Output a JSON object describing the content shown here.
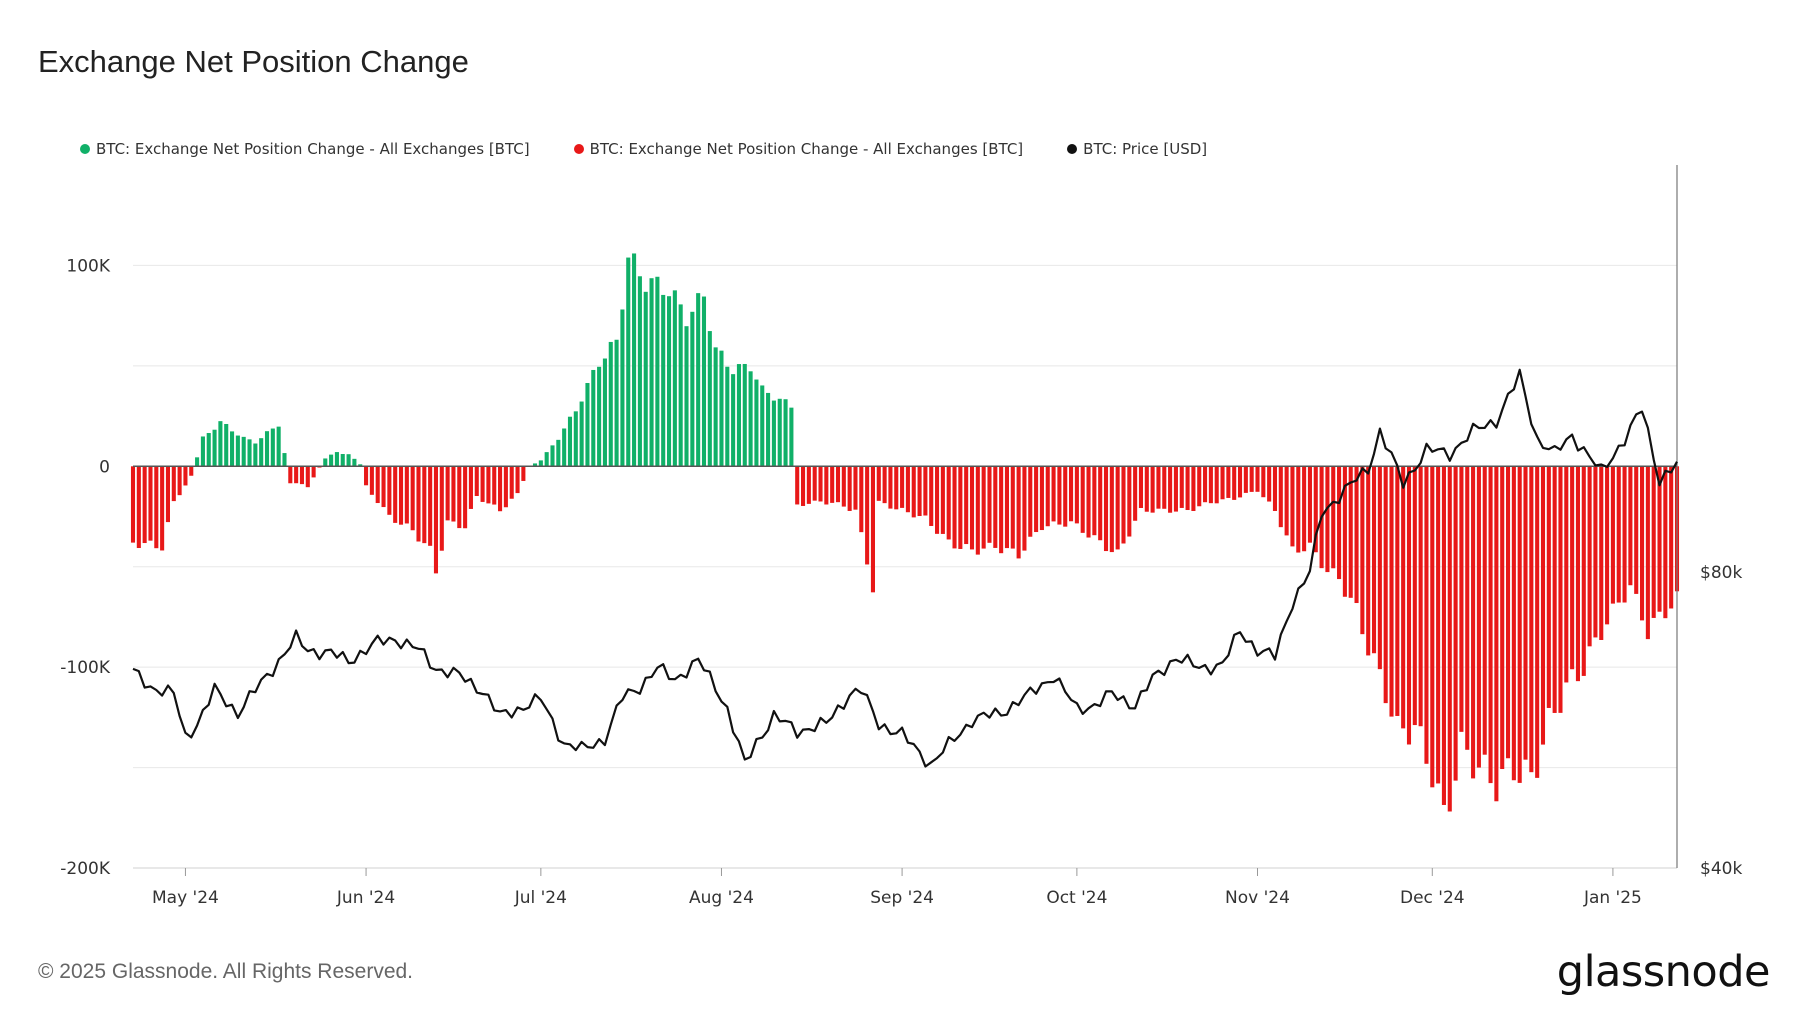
{
  "title": "Exchange Net Position Change",
  "footer": "© 2025 Glassnode. All Rights Reserved.",
  "brand": "glassnode",
  "colors": {
    "positive": "#10b068",
    "negative": "#e81818",
    "price": "#111111",
    "grid": "#e8e8e8",
    "zero": "#555555"
  },
  "chart_data": {
    "type": "bar",
    "title": "Exchange Net Position Change",
    "legend_placement": "top-left",
    "legend": [
      {
        "label": "BTC: Exchange Net Position Change - All Exchanges [BTC]",
        "color": "#10b068"
      },
      {
        "label": "BTC: Exchange Net Position Change - All Exchanges [BTC]",
        "color": "#e81818"
      },
      {
        "label": "BTC: Price [USD]",
        "color": "#111111"
      }
    ],
    "x_range": [
      "2024-04-22",
      "2025-01-12"
    ],
    "x_ticks": [
      {
        "date": "2024-05-01",
        "label": "May '24"
      },
      {
        "date": "2024-06-01",
        "label": "Jun '24"
      },
      {
        "date": "2024-07-01",
        "label": "Jul '24"
      },
      {
        "date": "2024-08-01",
        "label": "Aug '24"
      },
      {
        "date": "2024-09-01",
        "label": "Sep '24"
      },
      {
        "date": "2024-10-01",
        "label": "Oct '24"
      },
      {
        "date": "2024-11-01",
        "label": "Nov '24"
      },
      {
        "date": "2024-12-01",
        "label": "Dec '24"
      },
      {
        "date": "2025-01-01",
        "label": "Jan '25"
      }
    ],
    "y_left": {
      "range": [
        -200000,
        150000
      ],
      "ticks": [
        100000,
        0,
        -100000,
        -200000
      ],
      "tick_labels": [
        "100K",
        "0",
        "-100K",
        "-200K"
      ]
    },
    "y_right": {
      "range": [
        40000,
        135000
      ],
      "ticks": [
        80000,
        40000
      ],
      "tick_labels": [
        "$80k",
        "$40k"
      ]
    },
    "grid": true,
    "series": [
      {
        "name": "BTC: Exchange Net Position Change - All Exchanges [BTC]",
        "type": "bar",
        "anchors": [
          [
            "2024-04-22",
            -38000
          ],
          [
            "2024-04-27",
            -40000
          ],
          [
            "2024-04-29",
            -18000
          ],
          [
            "2024-05-02",
            -5000
          ],
          [
            "2024-05-04",
            14000
          ],
          [
            "2024-05-07",
            22000
          ],
          [
            "2024-05-11",
            14000
          ],
          [
            "2024-05-13",
            12000
          ],
          [
            "2024-05-17",
            21000
          ],
          [
            "2024-05-19",
            -8000
          ],
          [
            "2024-05-22",
            -10000
          ],
          [
            "2024-05-25",
            4000
          ],
          [
            "2024-05-27",
            7000
          ],
          [
            "2024-05-29",
            6000
          ],
          [
            "2024-05-31",
            1000
          ],
          [
            "2024-06-01",
            -10000
          ],
          [
            "2024-06-05",
            -25000
          ],
          [
            "2024-06-09",
            -32000
          ],
          [
            "2024-06-12",
            -42000
          ],
          [
            "2024-06-13",
            -52000
          ],
          [
            "2024-06-15",
            -28000
          ],
          [
            "2024-06-18",
            -30000
          ],
          [
            "2024-06-20",
            -15000
          ],
          [
            "2024-06-24",
            -22000
          ],
          [
            "2024-06-27",
            -14000
          ],
          [
            "2024-06-29",
            0
          ],
          [
            "2024-07-01",
            3000
          ],
          [
            "2024-07-04",
            14000
          ],
          [
            "2024-07-07",
            28000
          ],
          [
            "2024-07-11",
            52000
          ],
          [
            "2024-07-14",
            62000
          ],
          [
            "2024-07-16",
            104000
          ],
          [
            "2024-07-19",
            92000
          ],
          [
            "2024-07-23",
            88000
          ],
          [
            "2024-07-26",
            74000
          ],
          [
            "2024-07-29",
            85000
          ],
          [
            "2024-07-31",
            58000
          ],
          [
            "2024-08-03",
            48000
          ],
          [
            "2024-08-06",
            50000
          ],
          [
            "2024-08-08",
            38000
          ],
          [
            "2024-08-13",
            30000
          ],
          [
            "2024-08-14",
            -20000
          ],
          [
            "2024-08-16",
            -18000
          ],
          [
            "2024-08-20",
            -18000
          ],
          [
            "2024-08-24",
            -22000
          ],
          [
            "2024-08-27",
            -60000
          ],
          [
            "2024-08-28",
            -18000
          ],
          [
            "2024-09-01",
            -22000
          ],
          [
            "2024-09-05",
            -26000
          ],
          [
            "2024-09-09",
            -38000
          ],
          [
            "2024-09-13",
            -42000
          ],
          [
            "2024-09-17",
            -40000
          ],
          [
            "2024-09-21",
            -44000
          ],
          [
            "2024-09-25",
            -30000
          ],
          [
            "2024-09-30",
            -28000
          ],
          [
            "2024-10-05",
            -38000
          ],
          [
            "2024-10-08",
            -44000
          ],
          [
            "2024-10-12",
            -22000
          ],
          [
            "2024-10-16",
            -22000
          ],
          [
            "2024-10-20",
            -22000
          ],
          [
            "2024-10-24",
            -18000
          ],
          [
            "2024-10-28",
            -16000
          ],
          [
            "2024-11-01",
            -12000
          ],
          [
            "2024-11-04",
            -22000
          ],
          [
            "2024-11-07",
            -42000
          ],
          [
            "2024-11-10",
            -40000
          ],
          [
            "2024-11-13",
            -52000
          ],
          [
            "2024-11-15",
            -56000
          ],
          [
            "2024-11-18",
            -72000
          ],
          [
            "2024-11-20",
            -90000
          ],
          [
            "2024-11-23",
            -112000
          ],
          [
            "2024-11-25",
            -132000
          ],
          [
            "2024-11-28",
            -130000
          ],
          [
            "2024-12-01",
            -152000
          ],
          [
            "2024-12-03",
            -176000
          ],
          [
            "2024-12-06",
            -140000
          ],
          [
            "2024-12-09",
            -150000
          ],
          [
            "2024-12-12",
            -158000
          ],
          [
            "2024-12-15",
            -150000
          ],
          [
            "2024-12-18",
            -156000
          ],
          [
            "2024-12-21",
            -128000
          ],
          [
            "2024-12-24",
            -110000
          ],
          [
            "2024-12-27",
            -100000
          ],
          [
            "2024-12-30",
            -82000
          ],
          [
            "2025-01-02",
            -68000
          ],
          [
            "2025-01-04",
            -60000
          ],
          [
            "2025-01-07",
            -82000
          ],
          [
            "2025-01-10",
            -72000
          ],
          [
            "2025-01-12",
            -66000
          ]
        ]
      },
      {
        "name": "BTC: Price [USD]",
        "type": "line",
        "anchors": [
          [
            "2024-04-22",
            66500
          ],
          [
            "2024-04-25",
            64500
          ],
          [
            "2024-04-29",
            63500
          ],
          [
            "2024-05-01",
            57700
          ],
          [
            "2024-05-03",
            59500
          ],
          [
            "2024-05-06",
            64000
          ],
          [
            "2024-05-10",
            61000
          ],
          [
            "2024-05-15",
            66000
          ],
          [
            "2024-05-20",
            71000
          ],
          [
            "2024-05-22",
            69500
          ],
          [
            "2024-05-26",
            69000
          ],
          [
            "2024-05-29",
            68000
          ],
          [
            "2024-06-03",
            70500
          ],
          [
            "2024-06-06",
            71000
          ],
          [
            "2024-06-10",
            69500
          ],
          [
            "2024-06-13",
            67000
          ],
          [
            "2024-06-17",
            66000
          ],
          [
            "2024-06-21",
            64000
          ],
          [
            "2024-06-24",
            60500
          ],
          [
            "2024-06-27",
            61500
          ],
          [
            "2024-07-01",
            62800
          ],
          [
            "2024-07-05",
            56800
          ],
          [
            "2024-07-08",
            56000
          ],
          [
            "2024-07-12",
            57500
          ],
          [
            "2024-07-15",
            63000
          ],
          [
            "2024-07-18",
            64500
          ],
          [
            "2024-07-21",
            67000
          ],
          [
            "2024-07-24",
            65500
          ],
          [
            "2024-07-28",
            68000
          ],
          [
            "2024-07-31",
            64500
          ],
          [
            "2024-08-02",
            61500
          ],
          [
            "2024-08-05",
            54000
          ],
          [
            "2024-08-07",
            57000
          ],
          [
            "2024-08-10",
            60500
          ],
          [
            "2024-08-14",
            58500
          ],
          [
            "2024-08-19",
            59500
          ],
          [
            "2024-08-23",
            63500
          ],
          [
            "2024-08-25",
            64000
          ],
          [
            "2024-08-28",
            59500
          ],
          [
            "2024-09-01",
            58000
          ],
          [
            "2024-09-06",
            54000
          ],
          [
            "2024-09-10",
            57500
          ],
          [
            "2024-09-13",
            60000
          ],
          [
            "2024-09-18",
            61000
          ],
          [
            "2024-09-23",
            63500
          ],
          [
            "2024-09-27",
            66000
          ],
          [
            "2024-10-01",
            61500
          ],
          [
            "2024-10-04",
            62000
          ],
          [
            "2024-10-07",
            63500
          ],
          [
            "2024-10-11",
            62000
          ],
          [
            "2024-10-14",
            65500
          ],
          [
            "2024-10-18",
            68500
          ],
          [
            "2024-10-22",
            67000
          ],
          [
            "2024-10-26",
            67500
          ],
          [
            "2024-10-29",
            72000
          ],
          [
            "2024-11-01",
            69500
          ],
          [
            "2024-11-04",
            68500
          ],
          [
            "2024-11-07",
            76000
          ],
          [
            "2024-11-10",
            80000
          ],
          [
            "2024-11-12",
            88000
          ],
          [
            "2024-11-16",
            91000
          ],
          [
            "2024-11-20",
            94000
          ],
          [
            "2024-11-22",
            99000
          ],
          [
            "2024-11-26",
            92000
          ],
          [
            "2024-11-30",
            96500
          ],
          [
            "2024-12-04",
            96000
          ],
          [
            "2024-12-08",
            99000
          ],
          [
            "2024-12-12",
            100500
          ],
          [
            "2024-12-16",
            106500
          ],
          [
            "2024-12-19",
            98000
          ],
          [
            "2024-12-22",
            96000
          ],
          [
            "2024-12-25",
            98500
          ],
          [
            "2024-12-30",
            93500
          ],
          [
            "2025-01-03",
            98000
          ],
          [
            "2025-01-06",
            102000
          ],
          [
            "2025-01-09",
            92500
          ],
          [
            "2025-01-12",
            94500
          ]
        ]
      }
    ]
  }
}
